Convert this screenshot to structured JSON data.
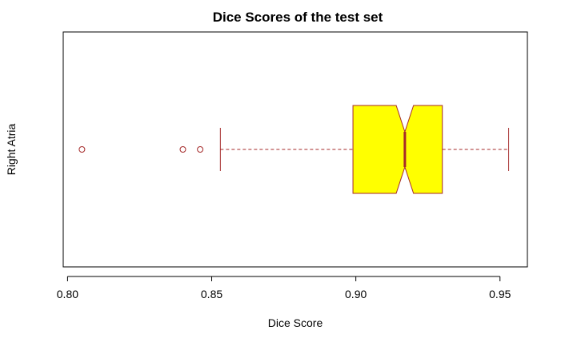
{
  "chart_data": {
    "type": "boxplot",
    "orientation": "horizontal",
    "notched": true,
    "title": "Dice Scores of the test set",
    "xlabel": "Dice Score",
    "ylabel": "Right Atria",
    "xlim": [
      0.7985,
      0.9595
    ],
    "x_ticks": [
      0.8,
      0.85,
      0.9,
      0.95
    ],
    "x_tick_labels": [
      "0.80",
      "0.85",
      "0.90",
      "0.95"
    ],
    "grid": false,
    "box": {
      "q1": 0.899,
      "median": 0.917,
      "q3": 0.93,
      "whisker_low": 0.853,
      "whisker_high": 0.953,
      "notch_low": 0.914,
      "notch_high": 0.92
    },
    "outliers": [
      0.805,
      0.84,
      0.846
    ],
    "colors": {
      "box_fill": "#ffff00",
      "border": "#a52a2a",
      "axis": "#000000"
    }
  }
}
